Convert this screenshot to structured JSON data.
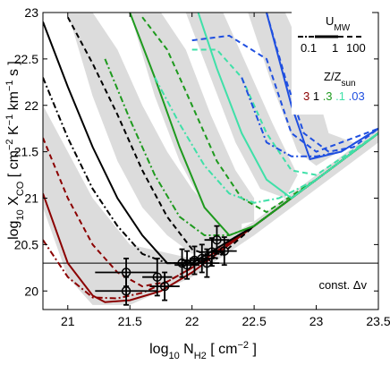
{
  "chart_data": {
    "type": "line",
    "xlabel_base": "log",
    "xlabel_sub": "10",
    "xlabel_var": " N",
    "xlabel_var_sub": "H2",
    "xlabel_units": " [ cm",
    "xlabel_units_sup": "−2",
    "xlabel_end": " ]",
    "ylabel_base": "log",
    "ylabel_sub": "10",
    "ylabel_var": " X",
    "ylabel_var_sub": "CO",
    "ylabel_units": " [ cm",
    "ylabel_sup1": "−2",
    "ylabel_K": " K",
    "ylabel_sup2": "−1",
    "ylabel_km": " km",
    "ylabel_sup3": "−1",
    "ylabel_end": " s ]",
    "xlim": [
      20.8,
      23.5
    ],
    "ylim": [
      19.8,
      23.0
    ],
    "x_ticks": [
      21,
      21.5,
      22,
      22.5,
      23,
      23.5
    ],
    "x_tick_labels": [
      "21",
      "21.5",
      "22",
      "22.5",
      "23",
      "23.5"
    ],
    "y_ticks": [
      20,
      20.5,
      21,
      21.5,
      22,
      22.5,
      23
    ],
    "y_tick_labels": [
      "20",
      "20.5",
      "21",
      "21.5",
      "22",
      "22.5",
      "23"
    ],
    "grid": false,
    "annotation": "const. Δv",
    "reference_line_y": 20.3,
    "legend": {
      "umw_label": "U",
      "umw_sub": "MW",
      "umw_values": [
        "0.1",
        "1",
        "100"
      ],
      "z_label": "Z/Z",
      "z_sub": "sun",
      "z_values": [
        {
          "label": "3",
          "color": "#8b0000"
        },
        {
          "label": "1",
          "color": "#000000"
        },
        {
          "label": ".3",
          "color": "#1e9a1e"
        },
        {
          "label": ".1",
          "color": "#3fe0a8"
        },
        {
          "label": ".03",
          "color": "#1f4fe0"
        }
      ]
    },
    "series": [
      {
        "z": "3",
        "u": "1",
        "style": "solid",
        "color": "#8b0000",
        "x": [
          20.8,
          21.0,
          21.2,
          21.3,
          21.5,
          21.75,
          22.0,
          22.5,
          23.0,
          23.5
        ],
        "y": [
          21.05,
          20.3,
          19.95,
          19.88,
          19.9,
          20.0,
          20.2,
          20.7,
          21.2,
          21.7
        ]
      },
      {
        "z": "3",
        "u": "0.1",
        "style": "dashdot",
        "color": "#8b0000",
        "x": [
          20.8,
          21.0,
          21.2,
          21.4,
          21.6,
          21.8,
          22.0,
          22.5,
          23.0,
          23.5
        ],
        "y": [
          20.55,
          20.15,
          19.93,
          19.92,
          19.98,
          20.1,
          20.25,
          20.7,
          21.2,
          21.7
        ]
      },
      {
        "z": "3",
        "u": "100",
        "style": "dashed",
        "color": "#8b0000",
        "x": [
          20.8,
          21.0,
          21.2,
          21.4,
          21.6,
          21.8,
          22.0,
          22.5,
          23.0,
          23.5
        ],
        "y": [
          21.65,
          21.0,
          20.5,
          20.2,
          20.05,
          20.1,
          20.25,
          20.7,
          21.2,
          21.7
        ]
      },
      {
        "z": "1",
        "u": "1",
        "style": "solid",
        "color": "#000000",
        "x": [
          20.8,
          21.0,
          21.2,
          21.4,
          21.6,
          21.8,
          22.0,
          22.5,
          23.0,
          23.5
        ],
        "y": [
          22.9,
          22.2,
          21.55,
          21.0,
          20.6,
          20.3,
          20.3,
          20.7,
          21.2,
          21.7
        ]
      },
      {
        "z": "1",
        "u": "0.1",
        "style": "dashdot",
        "color": "#000000",
        "x": [
          20.8,
          21.0,
          21.2,
          21.4,
          21.6,
          21.8,
          22.0,
          22.5,
          23.0,
          23.5
        ],
        "y": [
          22.3,
          21.65,
          21.1,
          20.7,
          20.4,
          20.3,
          20.3,
          20.7,
          21.2,
          21.7
        ]
      },
      {
        "z": "1",
        "u": "100",
        "style": "dashed",
        "color": "#000000",
        "x": [
          21.0,
          21.2,
          21.4,
          21.6,
          21.8,
          22.0,
          22.2,
          22.5,
          23.0,
          23.5
        ],
        "y": [
          22.95,
          22.45,
          21.9,
          21.3,
          20.8,
          20.45,
          20.35,
          20.7,
          21.2,
          21.7
        ]
      },
      {
        "z": ".3",
        "u": "1",
        "style": "solid",
        "color": "#1e9a1e",
        "x": [
          21.5,
          21.7,
          21.9,
          22.1,
          22.3,
          22.5,
          23.0,
          23.5
        ],
        "y": [
          23.0,
          22.3,
          21.55,
          20.9,
          20.6,
          20.7,
          21.2,
          21.7
        ]
      },
      {
        "z": ".3",
        "u": "0.1",
        "style": "dashdot",
        "color": "#1e9a1e",
        "x": [
          21.3,
          21.5,
          21.7,
          21.9,
          22.1,
          22.3,
          22.5,
          23.0,
          23.5
        ],
        "y": [
          22.5,
          21.85,
          21.25,
          20.8,
          20.6,
          20.6,
          20.7,
          21.2,
          21.7
        ]
      },
      {
        "z": ".3",
        "u": "100",
        "style": "dashed",
        "color": "#1e9a1e",
        "x": [
          21.6,
          21.8,
          22.0,
          22.2,
          22.4,
          22.6,
          23.0,
          23.5
        ],
        "y": [
          22.95,
          22.6,
          22.0,
          21.4,
          21.0,
          20.85,
          21.2,
          21.7
        ]
      },
      {
        "z": ".1",
        "u": "1",
        "style": "solid",
        "color": "#3fe0a8",
        "x": [
          22.05,
          22.2,
          22.4,
          22.6,
          22.8,
          23.0,
          23.5
        ],
        "y": [
          23.0,
          22.4,
          21.7,
          21.2,
          21.0,
          21.2,
          21.7
        ]
      },
      {
        "z": ".1",
        "u": "0.1",
        "style": "dashdot",
        "color": "#3fe0a8",
        "x": [
          21.7,
          21.9,
          22.1,
          22.3,
          22.5,
          22.7,
          23.0,
          23.5
        ],
        "y": [
          22.3,
          21.8,
          21.35,
          21.05,
          20.95,
          21.0,
          21.2,
          21.7
        ]
      },
      {
        "z": ".1",
        "u": "100",
        "style": "dashed",
        "color": "#3fe0a8",
        "x": [
          22.0,
          22.2,
          22.4,
          22.6,
          22.8,
          23.0,
          23.5
        ],
        "y": [
          22.6,
          22.6,
          22.3,
          21.7,
          21.3,
          21.25,
          21.7
        ]
      },
      {
        "z": ".03",
        "u": "1",
        "style": "solid",
        "color": "#1f4fe0",
        "x": [
          22.6,
          22.8,
          22.95,
          23.2,
          23.5
        ],
        "y": [
          23.0,
          22.0,
          21.42,
          21.5,
          21.75
        ]
      },
      {
        "z": ".03",
        "u": "0.1",
        "style": "dashdot",
        "color": "#1f4fe0",
        "x": [
          22.4,
          22.6,
          22.8,
          23.0,
          23.2,
          23.5
        ],
        "y": [
          22.3,
          21.6,
          21.45,
          21.45,
          21.5,
          21.75
        ]
      },
      {
        "z": ".03",
        "u": "100",
        "style": "dashed",
        "color": "#1f4fe0",
        "x": [
          22.6,
          22.75,
          22.9,
          23.1,
          23.3,
          23.5
        ],
        "y": [
          23.0,
          22.3,
          21.7,
          21.5,
          21.55,
          21.75
        ]
      },
      {
        "z": ".03",
        "u": "100",
        "style": "dashed",
        "color": "#1f4fe0",
        "x": [
          22.0,
          22.3,
          22.6,
          22.8,
          23.0,
          23.5
        ],
        "y": [
          22.7,
          22.75,
          22.5,
          21.7,
          21.5,
          21.75
        ]
      }
    ],
    "bands": [
      {
        "lower": [
          [
            20.8,
            20.9
          ],
          [
            21.0,
            20.15
          ],
          [
            21.2,
            19.85
          ],
          [
            21.5,
            19.85
          ],
          [
            22.0,
            20.15
          ],
          [
            22.5,
            20.6
          ],
          [
            23.0,
            21.1
          ],
          [
            23.5,
            21.6
          ]
        ],
        "upper": [
          [
            20.8,
            22.0
          ],
          [
            21.0,
            21.5
          ],
          [
            21.2,
            21.0
          ],
          [
            21.5,
            20.5
          ],
          [
            22.0,
            20.35
          ],
          [
            22.5,
            20.75
          ],
          [
            23.0,
            21.25
          ],
          [
            23.5,
            21.75
          ]
        ]
      },
      {
        "lower": [
          [
            21.0,
            23.0
          ],
          [
            21.2,
            22.1
          ],
          [
            21.4,
            21.4
          ],
          [
            21.6,
            20.9
          ],
          [
            21.8,
            20.6
          ],
          [
            22.0,
            20.4
          ],
          [
            22.4,
            20.6
          ]
        ],
        "upper": [
          [
            21.2,
            23.0
          ],
          [
            21.4,
            22.6
          ],
          [
            21.6,
            22.0
          ],
          [
            21.8,
            21.5
          ],
          [
            22.0,
            21.1
          ],
          [
            22.2,
            20.8
          ],
          [
            22.4,
            20.75
          ]
        ]
      },
      {
        "lower": [
          [
            21.5,
            23.0
          ],
          [
            21.7,
            22.1
          ],
          [
            21.9,
            21.4
          ],
          [
            22.1,
            20.9
          ],
          [
            22.3,
            20.7
          ],
          [
            22.5,
            20.75
          ]
        ],
        "upper": [
          [
            21.75,
            23.0
          ],
          [
            21.95,
            22.6
          ],
          [
            22.15,
            21.9
          ],
          [
            22.35,
            21.3
          ],
          [
            22.5,
            21.0
          ]
        ]
      },
      {
        "lower": [
          [
            21.95,
            23.0
          ],
          [
            22.15,
            22.3
          ],
          [
            22.35,
            21.6
          ],
          [
            22.55,
            21.1
          ],
          [
            22.75,
            21.0
          ]
        ],
        "upper": [
          [
            22.25,
            23.0
          ],
          [
            22.45,
            22.4
          ],
          [
            22.65,
            21.8
          ],
          [
            22.85,
            21.25
          ]
        ]
      },
      {
        "lower": [
          [
            22.45,
            23.0
          ],
          [
            22.65,
            22.2
          ],
          [
            22.85,
            21.5
          ],
          [
            23.0,
            21.35
          ]
        ],
        "upper": [
          [
            22.75,
            23.0
          ],
          [
            22.95,
            22.4
          ],
          [
            23.1,
            21.7
          ],
          [
            23.3,
            21.6
          ]
        ]
      }
    ],
    "points": [
      {
        "x": 21.47,
        "y": 20.2,
        "xerr": 0.25,
        "yerr": 0.15
      },
      {
        "x": 21.47,
        "y": 20.0,
        "xerr": 0.25,
        "yerr": 0.15
      },
      {
        "x": 21.72,
        "y": 20.15,
        "xerr": 0.12,
        "yerr": 0.2
      },
      {
        "x": 21.78,
        "y": 20.05,
        "xerr": 0.12,
        "yerr": 0.15
      },
      {
        "x": 21.92,
        "y": 20.3,
        "xerr": 0.1,
        "yerr": 0.15
      },
      {
        "x": 21.96,
        "y": 20.28,
        "xerr": 0.1,
        "yerr": 0.15
      },
      {
        "x": 22.02,
        "y": 20.33,
        "xerr": 0.1,
        "yerr": 0.15
      },
      {
        "x": 22.08,
        "y": 20.35,
        "xerr": 0.1,
        "yerr": 0.15
      },
      {
        "x": 22.12,
        "y": 20.3,
        "xerr": 0.1,
        "yerr": 0.15
      },
      {
        "x": 22.16,
        "y": 20.42,
        "xerr": 0.1,
        "yerr": 0.15
      },
      {
        "x": 22.2,
        "y": 20.55,
        "xerr": 0.1,
        "yerr": 0.15
      },
      {
        "x": 22.26,
        "y": 20.43,
        "xerr": 0.1,
        "yerr": 0.15
      }
    ]
  }
}
